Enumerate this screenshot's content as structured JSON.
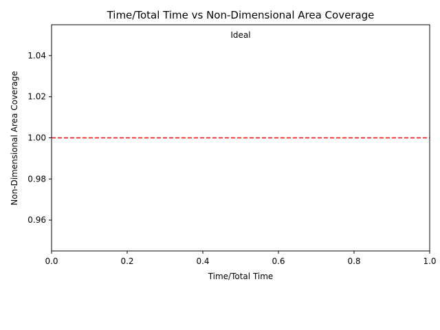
{
  "chart_data": {
    "type": "line",
    "title": "Time/Total Time vs Non-Dimensional Area Coverage",
    "xlabel": "Time/Total Time",
    "ylabel": "Non-Dimensional Area Coverage",
    "xlim": [
      0.0,
      1.0
    ],
    "ylim": [
      0.945,
      1.055
    ],
    "x_ticks": [
      0.0,
      0.2,
      0.4,
      0.6,
      0.8,
      1.0
    ],
    "x_tick_labels": [
      "0.0",
      "0.2",
      "0.4",
      "0.6",
      "0.8",
      "1.0"
    ],
    "y_ticks": [
      0.96,
      0.98,
      1.0,
      1.02,
      1.04
    ],
    "y_tick_labels": [
      "0.96",
      "0.98",
      "1.00",
      "1.02",
      "1.04"
    ],
    "grid": false,
    "reference_lines": [
      {
        "type": "horizontal",
        "y": 1.0,
        "color": "#ff0000",
        "style": "dashed"
      }
    ],
    "annotations": [
      {
        "text": "Ideal",
        "x": 0.5,
        "y": 1.05
      }
    ]
  }
}
